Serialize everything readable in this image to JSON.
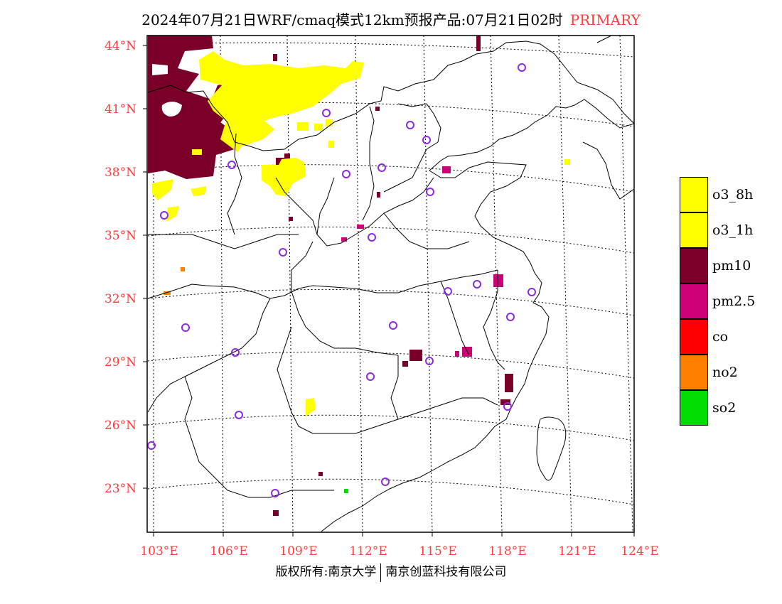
{
  "title": {
    "text": "2024年07月21日WRF/cmaq模式12km预报产品:07月21日02时",
    "tag": "PRIMARY"
  },
  "axes": {
    "lat_labels": [
      "44°N",
      "41°N",
      "38°N",
      "35°N",
      "32°N",
      "29°N",
      "26°N",
      "23°N"
    ],
    "lon_labels": [
      "103°E",
      "106°E",
      "109°E",
      "112°E",
      "115°E",
      "118°E",
      "121°E",
      "124°E"
    ],
    "label_color": "#ff3b3b"
  },
  "legend": [
    {
      "label": "o3_8h",
      "color": "#ffff00"
    },
    {
      "label": "o3_1h",
      "color": "#ffff00"
    },
    {
      "label": "pm10",
      "color": "#7a0029"
    },
    {
      "label": "pm2.5",
      "color": "#cc0077"
    },
    {
      "label": "co",
      "color": "#ff0000"
    },
    {
      "label": "no2",
      "color": "#ff8000"
    },
    {
      "label": "so2",
      "color": "#00dd00"
    }
  ],
  "stations_marker_color": "#8a2be2",
  "footer": {
    "left": "版权所有:南京大学",
    "right": "南京创蓝科技有限公司"
  }
}
